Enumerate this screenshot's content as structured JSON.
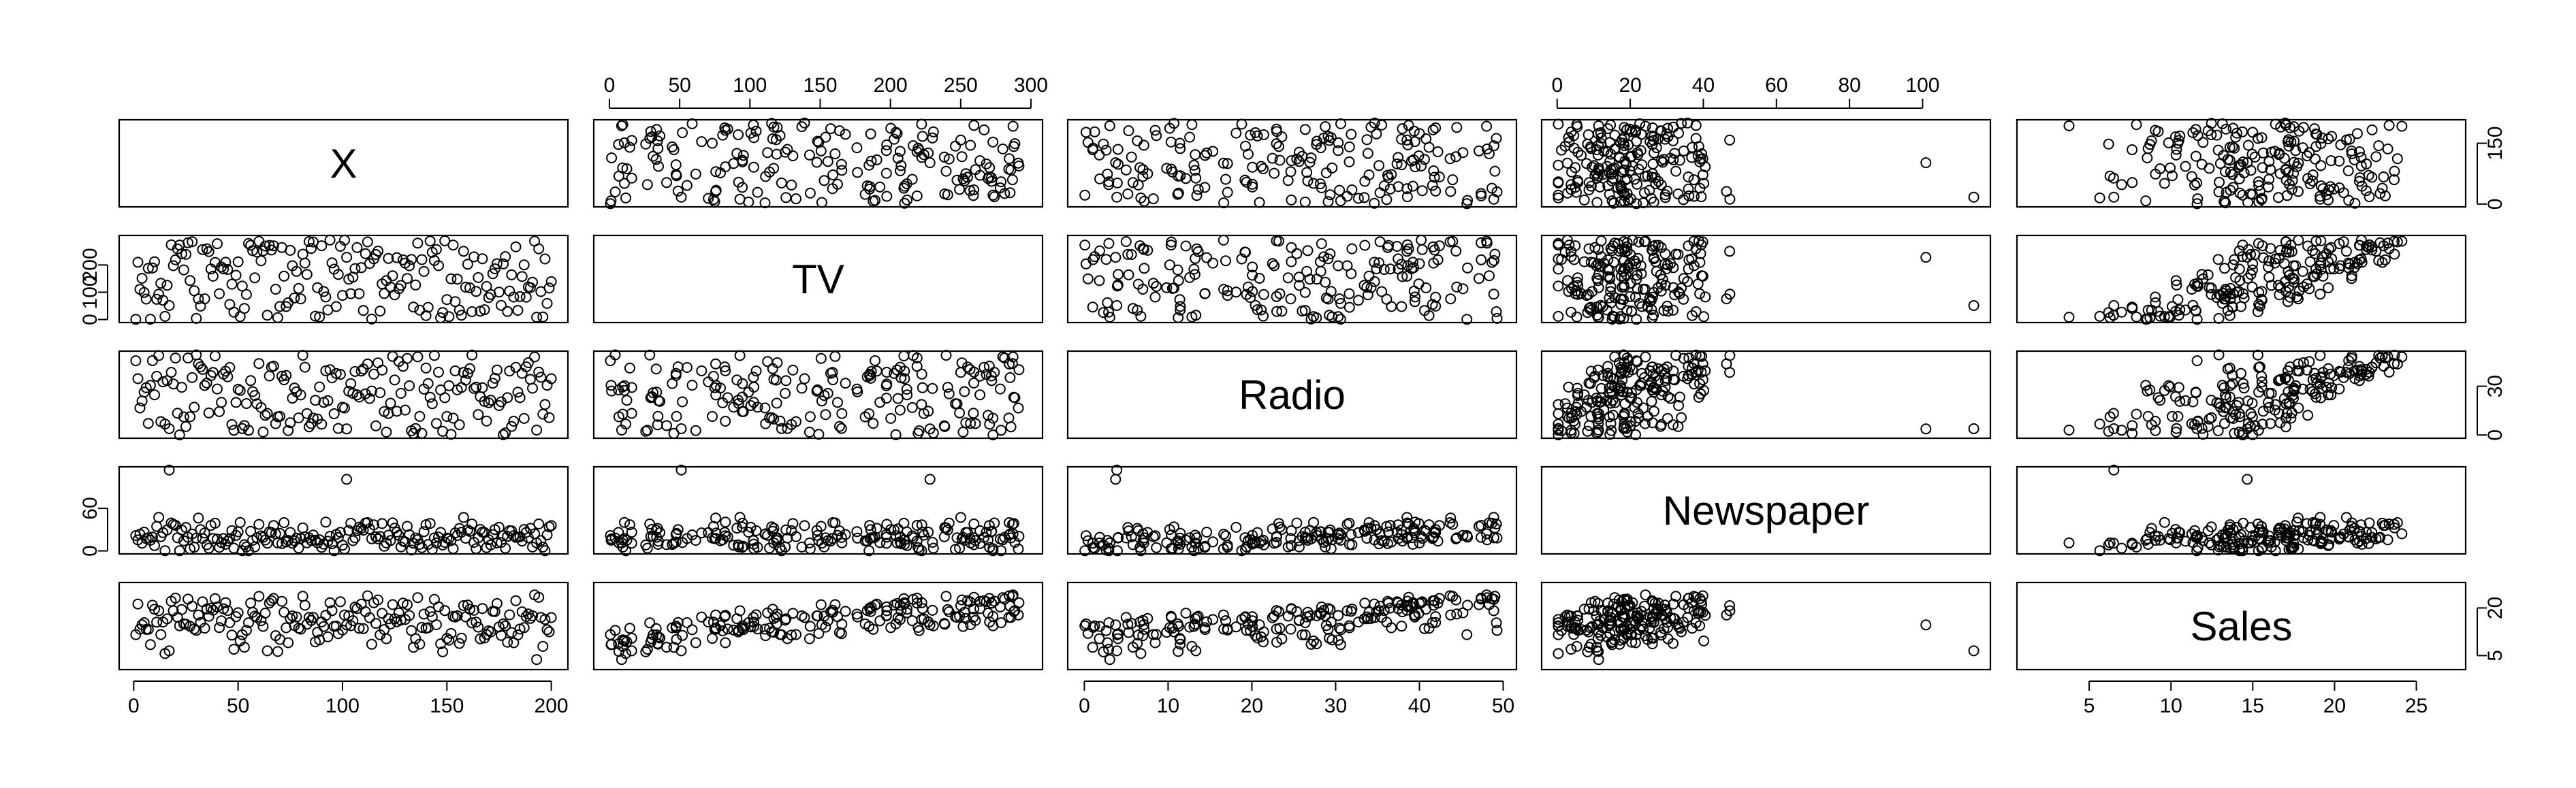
{
  "chart_data": {
    "type": "scatter",
    "kind": "scatterplot-matrix",
    "title": "",
    "variables": [
      "X",
      "TV",
      "Radio",
      "Newspaper",
      "Sales"
    ],
    "n_observations": 200,
    "ranges": {
      "X": [
        1,
        200
      ],
      "TV": [
        0.7,
        296.4
      ],
      "Radio": [
        0,
        49.6
      ],
      "Newspaper": [
        0.3,
        114
      ],
      "Sales": [
        1.6,
        27
      ]
    },
    "ticks": {
      "X": [
        0,
        50,
        100,
        150,
        200
      ],
      "TV": [
        0,
        50,
        100,
        150,
        200,
        250,
        300
      ],
      "Radio": [
        0,
        10,
        20,
        30,
        40,
        50
      ],
      "Newspaper": [
        0,
        20,
        40,
        60,
        80,
        100
      ],
      "Sales": [
        5,
        10,
        15,
        20,
        25
      ]
    },
    "left_axis_ticks": {
      "TV": [
        0,
        100,
        200
      ],
      "Newspaper": [
        0,
        60
      ]
    },
    "right_axis_ticks": {
      "X": [
        0,
        150
      ],
      "Radio": [
        0,
        30
      ],
      "Sales": [
        5,
        20
      ]
    },
    "point_style": "open-circle",
    "grid": false,
    "legend": "none"
  }
}
